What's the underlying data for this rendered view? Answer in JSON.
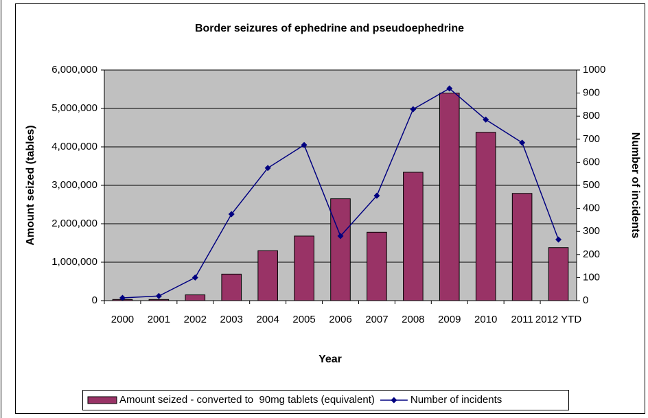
{
  "chart_data": {
    "type": "bar-line",
    "title": "Border seizures of ephedrine and pseudoephedrine",
    "x_label": "Year",
    "y_label": "Amount seized (tables)",
    "y2_label": "Number of incidents",
    "categories": [
      "2000",
      "2001",
      "2002",
      "2003",
      "2004",
      "2005",
      "2006",
      "2007",
      "2008",
      "2009",
      "2010",
      "2011",
      "2012 YTD"
    ],
    "series": [
      {
        "name": "Amount seized - converted to  90mg tablets (equivalent)",
        "type": "bar",
        "color": "#993366",
        "values": [
          30000,
          30000,
          150000,
          690000,
          1300000,
          1680000,
          2650000,
          1780000,
          3340000,
          5400000,
          4380000,
          2790000,
          1380000
        ]
      },
      {
        "name": "Number of incidents",
        "type": "line",
        "axis": "y2",
        "color": "#000080",
        "values": [
          12,
          20,
          100,
          375,
          575,
          675,
          280,
          455,
          830,
          920,
          785,
          685,
          265
        ]
      }
    ],
    "ylim": [
      0,
      6000000
    ],
    "yticks": [
      {
        "value": 0,
        "label": "0"
      },
      {
        "value": 1000000,
        "label": "1,000,000"
      },
      {
        "value": 2000000,
        "label": "2,000,000"
      },
      {
        "value": 3000000,
        "label": "3,000,000"
      },
      {
        "value": 4000000,
        "label": "4,000,000"
      },
      {
        "value": 5000000,
        "label": "5,000,000"
      },
      {
        "value": 6000000,
        "label": "6,000,000"
      }
    ],
    "y2lim": [
      0,
      1000
    ],
    "y2ticks": [
      0,
      100,
      200,
      300,
      400,
      500,
      600,
      700,
      800,
      900,
      1000
    ],
    "grid": true,
    "legend": "bottom"
  }
}
